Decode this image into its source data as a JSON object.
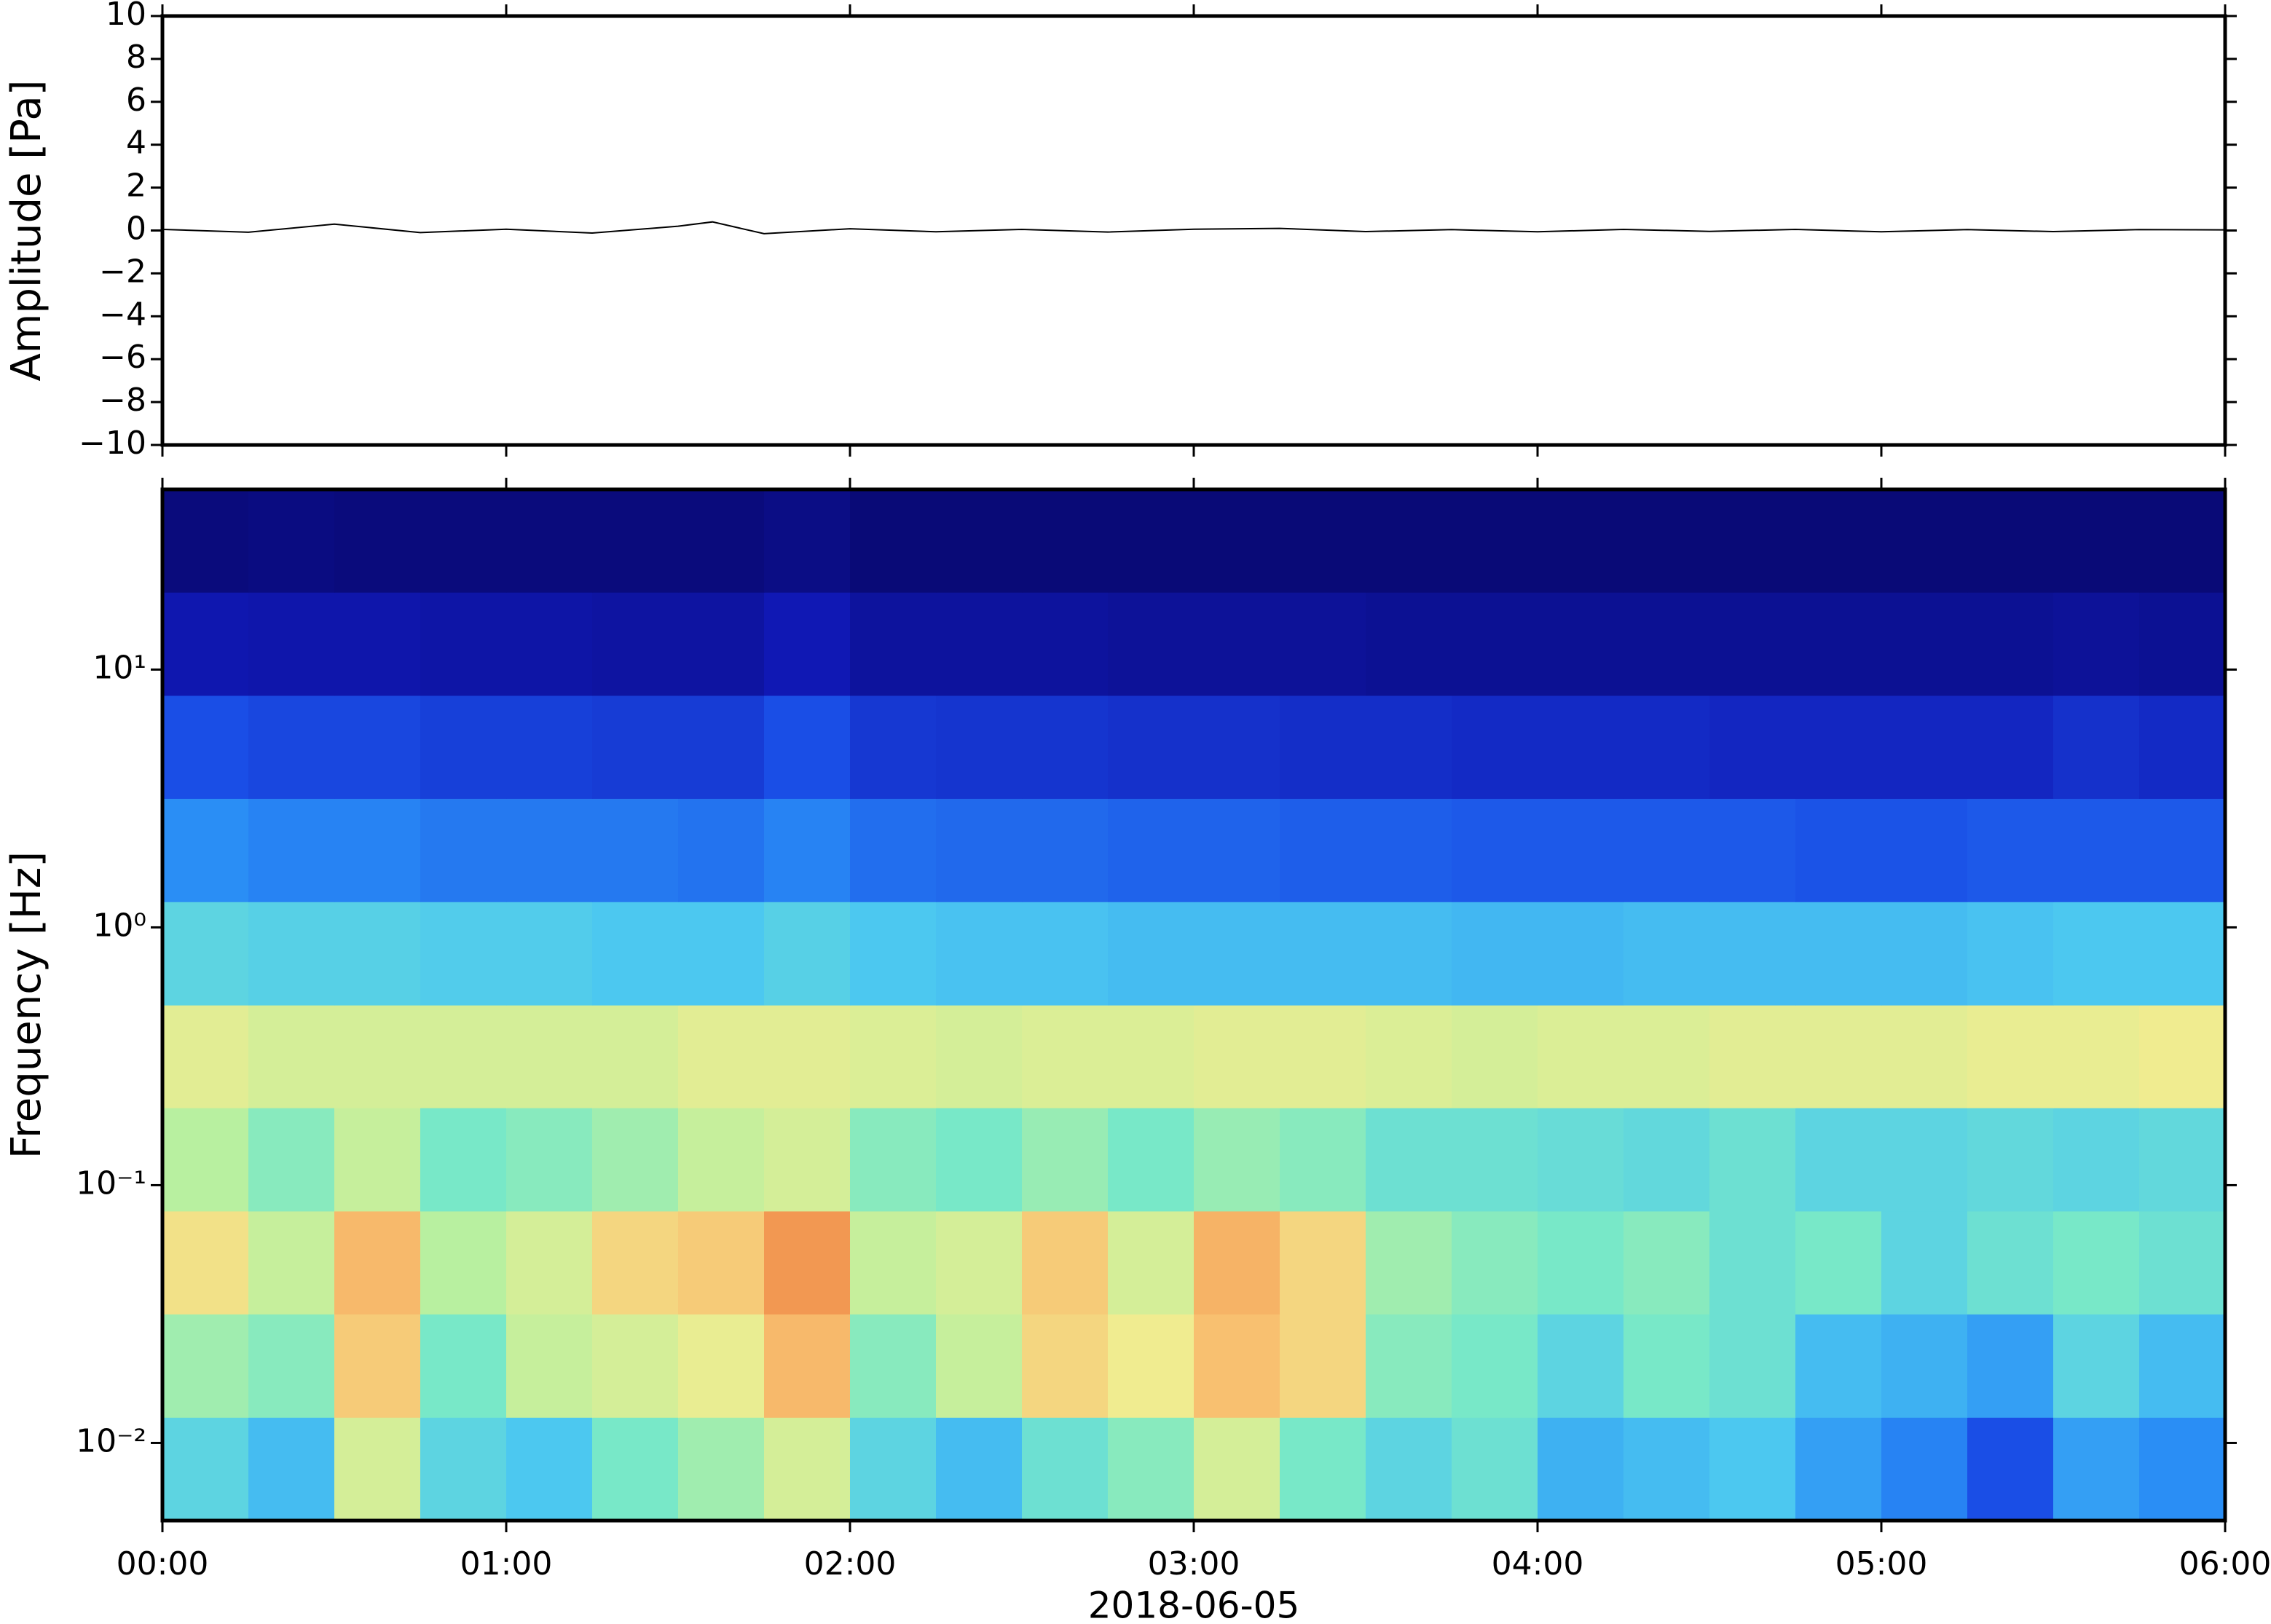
{
  "chart_data": [
    {
      "type": "line",
      "ylabel": "Amplitude [Pa]",
      "color": "#000000",
      "x": [
        0,
        0.25,
        0.5,
        0.75,
        1,
        1.25,
        1.5,
        1.6,
        1.75,
        2,
        2.25,
        2.5,
        2.75,
        3,
        3.25,
        3.5,
        3.75,
        4,
        4.25,
        4.5,
        4.75,
        5,
        5.25,
        5.5,
        5.75,
        6
      ],
      "values": [
        0.05,
        -0.08,
        0.3,
        -0.1,
        0.06,
        -0.12,
        0.2,
        0.4,
        -0.15,
        0.08,
        -0.06,
        0.05,
        -0.07,
        0.06,
        0.1,
        -0.05,
        0.04,
        -0.06,
        0.05,
        -0.04,
        0.05,
        -0.06,
        0.04,
        -0.05,
        0.04,
        0.03
      ],
      "xlim": [
        0,
        6
      ],
      "ylim": [
        -10,
        10
      ],
      "yticks": [
        {
          "value": -10,
          "label": "−10"
        },
        {
          "value": -8,
          "label": "−8"
        },
        {
          "value": -6,
          "label": "−6"
        },
        {
          "value": -4,
          "label": "−4"
        },
        {
          "value": -2,
          "label": "−2"
        },
        0,
        2,
        4,
        6,
        8,
        10
      ]
    },
    {
      "type": "heatmap",
      "ylabel": "Frequency [Hz]",
      "xlabel": "2018-06-05",
      "ylog": true,
      "xlim": [
        0,
        6
      ],
      "ylim": [
        0.005,
        50
      ],
      "xticks": [
        {
          "value": 0,
          "label": "00:00"
        },
        {
          "value": 1,
          "label": "01:00"
        },
        {
          "value": 2,
          "label": "02:00"
        },
        {
          "value": 3,
          "label": "03:00"
        },
        {
          "value": 4,
          "label": "04:00"
        },
        {
          "value": 5,
          "label": "05:00"
        },
        {
          "value": 6,
          "label": "06:00"
        }
      ],
      "yticks": [
        {
          "value": 0.01,
          "label": "10⁻²"
        },
        {
          "value": 0.1,
          "label": "10⁻¹"
        },
        {
          "value": 1,
          "label": "10⁰"
        },
        {
          "value": 10,
          "label": "10¹"
        }
      ],
      "x": [
        0.125,
        0.375,
        0.625,
        0.875,
        1.125,
        1.375,
        1.625,
        1.875,
        2.125,
        2.375,
        2.625,
        2.875,
        3.125,
        3.375,
        3.625,
        3.875,
        4.125,
        4.375,
        4.625,
        4.875,
        5.125,
        5.375,
        5.625,
        5.875
      ],
      "y": [
        0.0079,
        0.02,
        0.05,
        0.126,
        0.316,
        0.79,
        2.0,
        5.0,
        12.6,
        31.6
      ],
      "zlim": [
        0,
        100
      ],
      "colorscale": [
        [
          0,
          "#08086e"
        ],
        [
          15,
          "#1018b4"
        ],
        [
          30,
          "#1a4ee6"
        ],
        [
          42,
          "#2a8ef5"
        ],
        [
          52,
          "#4cc8f0"
        ],
        [
          60,
          "#78e8c8"
        ],
        [
          68,
          "#b8f0a0"
        ],
        [
          76,
          "#f0ec90"
        ],
        [
          84,
          "#f8c070"
        ],
        [
          92,
          "#f08a48"
        ]
      ],
      "z": [
        [
          55,
          50,
          72,
          55,
          52,
          60,
          65,
          72,
          55,
          50,
          58,
          62,
          72,
          60,
          55,
          58,
          48,
          50,
          52,
          45,
          40,
          30,
          45,
          42
        ],
        [
          65,
          62,
          82,
          60,
          70,
          72,
          75,
          85,
          62,
          70,
          80,
          76,
          84,
          80,
          62,
          60,
          55,
          60,
          58,
          50,
          48,
          45,
          55,
          50
        ],
        [
          78,
          70,
          85,
          68,
          72,
          80,
          82,
          90,
          70,
          72,
          82,
          72,
          86,
          80,
          65,
          62,
          60,
          62,
          58,
          60,
          55,
          58,
          60,
          58
        ],
        [
          68,
          62,
          70,
          60,
          62,
          65,
          70,
          72,
          62,
          60,
          64,
          60,
          64,
          62,
          58,
          58,
          57,
          56,
          58,
          55,
          55,
          56,
          55,
          56
        ],
        [
          74,
          72,
          72,
          72,
          72,
          72,
          74,
          74,
          73,
          72,
          73,
          73,
          74,
          74,
          73,
          72,
          73,
          73,
          74,
          74,
          74,
          75,
          75,
          76
        ],
        [
          55,
          54,
          54,
          53,
          53,
          52,
          52,
          54,
          52,
          51,
          51,
          50,
          50,
          50,
          50,
          49,
          49,
          50,
          50,
          50,
          50,
          51,
          52,
          52
        ],
        [
          42,
          40,
          40,
          38,
          38,
          38,
          37,
          40,
          36,
          35,
          35,
          34,
          34,
          33,
          33,
          32,
          32,
          32,
          32,
          31,
          31,
          32,
          32,
          32
        ],
        [
          30,
          28,
          28,
          26,
          26,
          25,
          25,
          30,
          24,
          23,
          23,
          22,
          22,
          21,
          21,
          20,
          20,
          20,
          19,
          19,
          19,
          19,
          22,
          20
        ],
        [
          14,
          13,
          13,
          12,
          12,
          11,
          11,
          15,
          10,
          10,
          10,
          9,
          9,
          9,
          8,
          8,
          8,
          8,
          8,
          8,
          8,
          8,
          9,
          8
        ],
        [
          3,
          4,
          3,
          3,
          3,
          3,
          3,
          5,
          2,
          2,
          2,
          2,
          2,
          2,
          2,
          2,
          2,
          2,
          2,
          2,
          2,
          2,
          2,
          2
        ]
      ]
    }
  ]
}
